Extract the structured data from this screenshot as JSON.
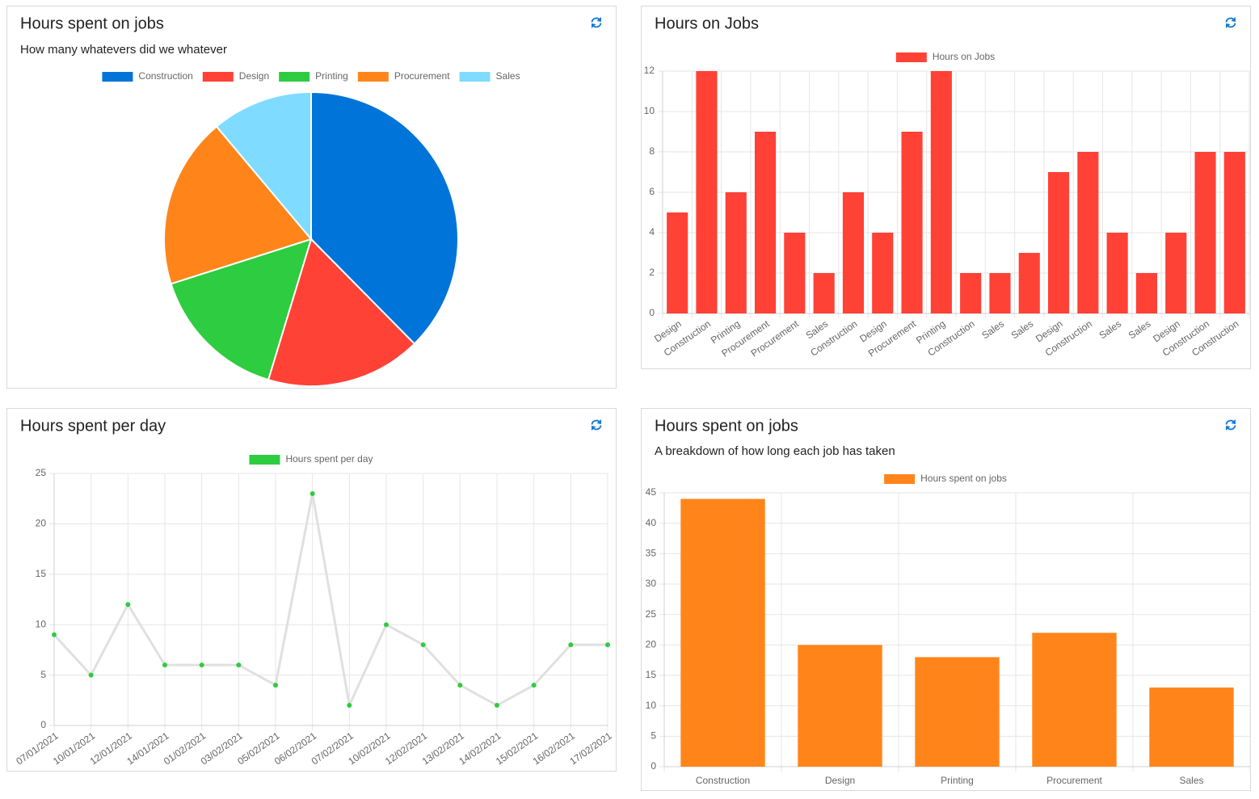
{
  "chart_data": [
    {
      "type": "pie",
      "title": "Hours spent on jobs",
      "subtitle": "How many whatevers did we whatever",
      "categories": [
        "Construction",
        "Design",
        "Printing",
        "Procurement",
        "Sales"
      ],
      "values": [
        44,
        20,
        18,
        22,
        13
      ],
      "colors": [
        "#0074d9",
        "#ff4136",
        "#2ecc40",
        "#ff851b",
        "#7fdbff"
      ]
    },
    {
      "type": "bar",
      "title": "Hours on Jobs",
      "categories": [
        "Design",
        "Construction",
        "Printing",
        "Procurement",
        "Procurement",
        "Sales",
        "Construction",
        "Design",
        "Procurement",
        "Printing",
        "Construction",
        "Sales",
        "Sales",
        "Design",
        "Construction",
        "Sales",
        "Sales",
        "Design",
        "Construction",
        "Construction"
      ],
      "series": [
        {
          "name": "Hours on Jobs",
          "color": "#ff4136",
          "values": [
            5,
            12,
            6,
            9,
            4,
            2,
            6,
            4,
            9,
            12,
            2,
            2,
            3,
            7,
            8,
            4,
            2,
            4,
            8,
            8
          ]
        }
      ],
      "ylim": [
        0,
        12
      ],
      "yticks": [
        0,
        2,
        4,
        6,
        8,
        10,
        12
      ],
      "grid": true
    },
    {
      "type": "line",
      "title": "Hours spent per day",
      "categories": [
        "07/01/2021",
        "10/01/2021",
        "12/01/2021",
        "14/01/2021",
        "01/02/2021",
        "03/02/2021",
        "05/02/2021",
        "06/02/2021",
        "07/02/2021",
        "10/02/2021",
        "12/02/2021",
        "13/02/2021",
        "14/02/2021",
        "15/02/2021",
        "16/02/2021",
        "17/02/2021"
      ],
      "series": [
        {
          "name": "Hours spent per day",
          "color": "#2ecc40",
          "line_color": "#e0e0e0",
          "values": [
            9,
            5,
            12,
            6,
            6,
            6,
            4,
            23,
            2,
            10,
            8,
            4,
            2,
            4,
            8,
            8
          ]
        }
      ],
      "ylim": [
        0,
        25
      ],
      "yticks": [
        0,
        5,
        10,
        15,
        20,
        25
      ],
      "grid": true
    },
    {
      "type": "bar",
      "title": "Hours spent on jobs",
      "subtitle": "A breakdown of how long each job has taken",
      "categories": [
        "Construction",
        "Design",
        "Printing",
        "Procurement",
        "Sales"
      ],
      "series": [
        {
          "name": "Hours spent on jobs",
          "color": "#ff851b",
          "values": [
            44,
            20,
            18,
            22,
            13
          ]
        }
      ],
      "ylim": [
        0,
        45
      ],
      "yticks": [
        0,
        5,
        10,
        15,
        20,
        25,
        30,
        35,
        40,
        45
      ],
      "grid": true
    }
  ]
}
